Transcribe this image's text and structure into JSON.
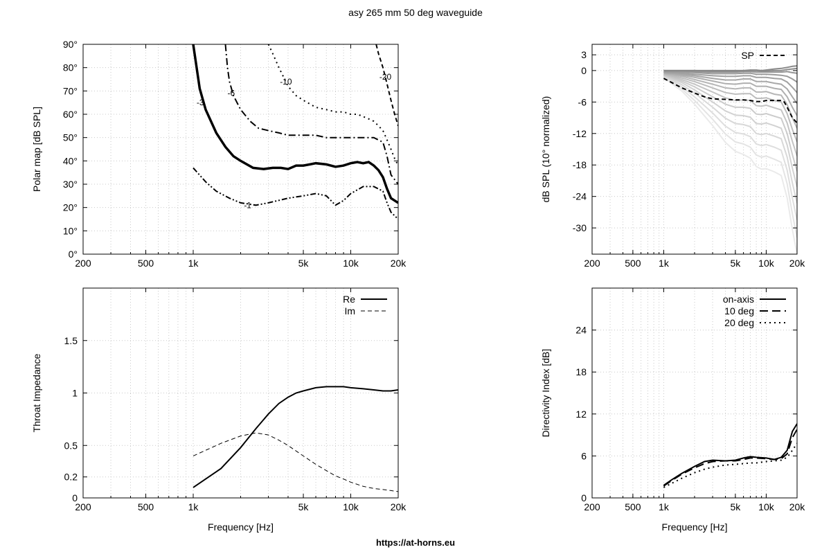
{
  "title": "asy 265 mm 50 deg waveguide",
  "footer": "https://at-horns.eu",
  "chart_data": [
    {
      "type": "line",
      "id": "polar",
      "xscale": "log",
      "xlim": [
        200,
        20000
      ],
      "ylim": [
        0,
        90
      ],
      "xticks": [
        200,
        500,
        1000,
        5000,
        10000,
        20000
      ],
      "xticklabels": [
        "200",
        "500",
        "1k",
        "5k",
        "10k",
        "20k"
      ],
      "yticks": [
        0,
        10,
        20,
        30,
        40,
        50,
        60,
        70,
        80,
        90
      ],
      "yticklabels": [
        "0°",
        "10°",
        "20°",
        "30°",
        "40°",
        "50°",
        "60°",
        "70°",
        "80°",
        "90°"
      ],
      "xlabel": "",
      "ylabel": "Polar map [dB SPL]",
      "grid": true,
      "series": [
        {
          "name": "-1",
          "style": "dashdotdot",
          "width": 2,
          "color": "#000000",
          "x": [
            1000,
            1200,
            1400,
            1700,
            2000,
            2500,
            3000,
            4000,
            5000,
            6000,
            7000,
            8000,
            9000,
            10000,
            12000,
            14000,
            16000,
            17000,
            18000,
            20000
          ],
          "y": [
            37,
            31,
            27,
            24,
            22,
            21,
            22,
            24,
            25,
            26,
            25,
            21,
            23,
            26,
            29,
            29,
            27,
            22,
            18,
            15
          ]
        },
        {
          "name": "-3",
          "style": "solid",
          "width": 3.5,
          "color": "#000000",
          "x": [
            1000,
            1100,
            1200,
            1400,
            1600,
            1800,
            2000,
            2400,
            2800,
            3200,
            3600,
            4000,
            4500,
            5000,
            5500,
            6000,
            7000,
            8000,
            9000,
            10000,
            11000,
            12000,
            13000,
            14000,
            15000,
            16000,
            17000,
            18000,
            20000
          ],
          "y": [
            90,
            71,
            62,
            52,
            46,
            42,
            40,
            37,
            36.5,
            37,
            37,
            36.5,
            38,
            38,
            38.5,
            39,
            38.5,
            37.5,
            38,
            39,
            39.5,
            39,
            39.5,
            38,
            36,
            33,
            28,
            24,
            22
          ]
        },
        {
          "name": "-6",
          "style": "dashdot",
          "width": 2,
          "color": "#000000",
          "x": [
            1600,
            1650,
            1700,
            1800,
            2000,
            2300,
            2600,
            3000,
            3500,
            4000,
            5000,
            6000,
            7000,
            8000,
            10000,
            12000,
            14000,
            16000,
            17000,
            18000,
            20000
          ],
          "y": [
            90,
            80,
            74,
            68,
            62,
            57,
            54,
            53,
            52,
            51,
            51,
            51,
            50,
            50,
            50,
            50,
            50,
            48,
            42,
            34,
            30
          ]
        },
        {
          "name": "-10",
          "style": "dotted",
          "width": 2,
          "color": "#000000",
          "x": [
            3000,
            3200,
            3500,
            4000,
            4500,
            5000,
            6000,
            7000,
            8000,
            9000,
            10000,
            11000,
            12000,
            13000,
            14000,
            15000,
            16000,
            17000,
            18000,
            19000,
            20000
          ],
          "y": [
            90,
            86,
            80,
            72,
            68,
            66,
            63,
            62,
            61,
            61,
            60,
            60,
            59,
            58,
            57,
            55,
            53,
            49,
            45,
            41,
            38
          ]
        },
        {
          "name": "-20",
          "style": "dashed",
          "width": 2,
          "color": "#000000",
          "x": [
            14500,
            15000,
            16000,
            17000,
            18000,
            19000,
            20000
          ],
          "y": [
            90,
            86,
            80,
            73,
            66,
            60,
            55
          ]
        }
      ],
      "annotations": [
        {
          "text": "-1",
          "x": 2100,
          "y": 21
        },
        {
          "text": "-3",
          "x": 1050,
          "y": 65
        },
        {
          "text": "-6",
          "x": 1650,
          "y": 69
        },
        {
          "text": "-10",
          "x": 3550,
          "y": 74
        },
        {
          "text": "-20",
          "x": 15200,
          "y": 76
        }
      ]
    },
    {
      "type": "line",
      "id": "normalized",
      "xscale": "log",
      "xlim": [
        200,
        20000
      ],
      "ylim": [
        -35,
        5
      ],
      "xticks": [
        200,
        500,
        1000,
        5000,
        10000,
        20000
      ],
      "xticklabels": [
        "200",
        "500",
        "1k",
        "5k",
        "10k",
        "20k"
      ],
      "yticks": [
        3,
        0,
        -6,
        -12,
        -18,
        -24,
        -30
      ],
      "yticklabels": [
        "3",
        "0",
        "-6",
        "-12",
        "-18",
        "-24",
        "-30"
      ],
      "xlabel": "",
      "ylabel": "dB SPL (10° normalized)",
      "grid": true,
      "legend": "top-right",
      "x": [
        1000,
        1500,
        2000,
        3000,
        4000,
        5000,
        6000,
        7000,
        8000,
        9000,
        10000,
        12000,
        14000,
        16000,
        18000,
        20000
      ],
      "angle_curves": [
        {
          "gray": "#888888",
          "y": [
            0,
            0,
            0,
            0,
            0,
            0,
            0,
            0.1,
            0.1,
            0,
            0.1,
            0.3,
            0.4,
            0.6,
            0.8,
            0.9
          ]
        },
        {
          "gray": "#8e8e8e",
          "y": [
            0,
            0,
            0,
            -0.1,
            -0.1,
            -0.1,
            -0.1,
            0,
            0,
            -0.1,
            -0.1,
            0,
            0,
            0.2,
            0.3,
            0.4
          ]
        },
        {
          "gray": "#949494",
          "y": [
            -0.1,
            -0.1,
            -0.2,
            -0.3,
            -0.3,
            -0.3,
            -0.2,
            -0.2,
            -0.3,
            -0.3,
            -0.3,
            -0.3,
            -0.3,
            -0.2,
            -0.4,
            -0.5
          ]
        },
        {
          "gray": "#9b9b9b",
          "y": [
            -0.2,
            -0.3,
            -0.4,
            -0.6,
            -0.6,
            -0.6,
            -0.5,
            -0.5,
            -0.7,
            -0.7,
            -0.7,
            -0.8,
            -0.9,
            -1.1,
            -1.6,
            -2.2
          ]
        },
        {
          "gray": "#a1a1a1",
          "y": [
            -0.3,
            -0.5,
            -0.7,
            -1.0,
            -1.1,
            -1.1,
            -1.0,
            -1.0,
            -1.3,
            -1.3,
            -1.3,
            -1.5,
            -1.6,
            -2.2,
            -3.2,
            -4.2
          ]
        },
        {
          "gray": "#a8a8a8",
          "y": [
            -0.4,
            -0.7,
            -1.0,
            -1.5,
            -1.8,
            -1.8,
            -1.6,
            -1.6,
            -2.1,
            -2.1,
            -2.1,
            -2.4,
            -2.6,
            -3.5,
            -5.0,
            -6.3
          ]
        },
        {
          "gray": "#afafaf",
          "y": [
            -0.5,
            -0.9,
            -1.3,
            -2.0,
            -2.5,
            -2.6,
            -2.4,
            -2.4,
            -3.0,
            -3.0,
            -3.0,
            -3.4,
            -3.6,
            -5.0,
            -7.0,
            -8.6
          ]
        },
        {
          "gray": "#b6b6b6",
          "y": [
            -0.6,
            -1.1,
            -1.7,
            -2.6,
            -3.3,
            -3.5,
            -3.3,
            -3.3,
            -4.1,
            -4.1,
            -4.0,
            -4.5,
            -4.7,
            -6.5,
            -9.0,
            -11.0
          ]
        },
        {
          "gray": "#bdbdbd",
          "y": [
            -0.7,
            -1.4,
            -2.1,
            -3.3,
            -4.2,
            -4.5,
            -4.4,
            -4.4,
            -5.3,
            -5.3,
            -5.2,
            -5.7,
            -6.0,
            -8.2,
            -11.2,
            -13.6
          ]
        },
        {
          "gray": "#c4c4c4",
          "y": [
            -0.8,
            -1.7,
            -2.6,
            -4.1,
            -5.2,
            -5.7,
            -5.6,
            -5.7,
            -6.7,
            -6.8,
            -6.6,
            -7.1,
            -7.5,
            -10.0,
            -13.5,
            -16.3
          ]
        },
        {
          "gray": "#cbcbcb",
          "y": [
            -0.9,
            -2.0,
            -3.1,
            -5.0,
            -6.4,
            -7.0,
            -7.0,
            -7.2,
            -8.3,
            -8.4,
            -8.2,
            -8.7,
            -9.1,
            -12.0,
            -16.0,
            -19.2
          ]
        },
        {
          "gray": "#d2d2d2",
          "y": [
            -1.0,
            -2.3,
            -3.7,
            -6.0,
            -7.7,
            -8.5,
            -8.6,
            -8.9,
            -10.1,
            -10.2,
            -10.0,
            -10.5,
            -11.0,
            -14.2,
            -18.6,
            -22.2
          ]
        },
        {
          "gray": "#d8d8d8",
          "y": [
            -1.1,
            -2.7,
            -4.3,
            -7.0,
            -9.1,
            -10.1,
            -10.3,
            -10.7,
            -12.0,
            -12.2,
            -12.0,
            -12.5,
            -13.0,
            -16.5,
            -21.4,
            -25.3
          ]
        },
        {
          "gray": "#dedede",
          "y": [
            -1.2,
            -3.1,
            -5.0,
            -8.1,
            -10.6,
            -11.8,
            -12.1,
            -12.6,
            -14.0,
            -14.3,
            -14.1,
            -14.6,
            -15.2,
            -19.0,
            -24.3,
            -28.5
          ]
        },
        {
          "gray": "#e4e4e4",
          "y": [
            -1.3,
            -3.5,
            -5.7,
            -9.3,
            -12.1,
            -13.6,
            -14.0,
            -14.6,
            -16.1,
            -16.5,
            -16.3,
            -16.9,
            -17.5,
            -21.6,
            -27.3,
            -31.8
          ]
        },
        {
          "gray": "#eaeaea",
          "y": [
            -1.4,
            -3.9,
            -6.4,
            -10.5,
            -13.7,
            -15.4,
            -16.0,
            -16.7,
            -18.3,
            -18.8,
            -18.7,
            -19.3,
            -20.0,
            -24.3,
            -30.3,
            -35.0
          ]
        }
      ],
      "series": [
        {
          "name": "SP",
          "style": "dashed",
          "width": 2,
          "color": "#000000",
          "x": [
            1000,
            1200,
            1500,
            2000,
            2500,
            3000,
            4000,
            5000,
            6000,
            7000,
            8000,
            9000,
            10000,
            12000,
            14000,
            15000,
            16000,
            18000,
            20000
          ],
          "y": [
            -1.5,
            -2.3,
            -3.3,
            -4.3,
            -5.0,
            -5.4,
            -5.5,
            -5.6,
            -5.6,
            -5.7,
            -5.9,
            -5.9,
            -5.7,
            -5.7,
            -5.7,
            -6.0,
            -7.0,
            -9.0,
            -10.0
          ]
        }
      ]
    },
    {
      "type": "line",
      "id": "impedance",
      "xscale": "log",
      "xlim": [
        200,
        20000
      ],
      "ylim": [
        0,
        2
      ],
      "xticks": [
        200,
        500,
        1000,
        5000,
        10000,
        20000
      ],
      "xticklabels": [
        "200",
        "500",
        "1k",
        "5k",
        "10k",
        "20k"
      ],
      "yticks": [
        0,
        0.2,
        0.5,
        1,
        1.5
      ],
      "yticklabels": [
        "0",
        "0.2",
        "0.5",
        "1",
        "1.5"
      ],
      "xlabel": "Frequency [Hz]",
      "ylabel": "Throat Impedance",
      "grid": true,
      "legend": "top-right",
      "series": [
        {
          "name": "Re",
          "style": "solid",
          "width": 2,
          "color": "#000000",
          "x": [
            1000,
            1500,
            2000,
            2500,
            3000,
            3500,
            4000,
            4500,
            5000,
            6000,
            7000,
            8000,
            9000,
            10000,
            12000,
            14000,
            16000,
            18000,
            20000
          ],
          "y": [
            0.1,
            0.28,
            0.48,
            0.66,
            0.8,
            0.9,
            0.96,
            1.0,
            1.02,
            1.05,
            1.06,
            1.06,
            1.06,
            1.05,
            1.04,
            1.03,
            1.02,
            1.02,
            1.03
          ]
        },
        {
          "name": "Im",
          "style": "dashed",
          "width": 1,
          "color": "#000000",
          "x": [
            1000,
            1500,
            2000,
            2500,
            3000,
            3500,
            4000,
            5000,
            6000,
            7000,
            8000,
            9000,
            10000,
            12000,
            14000,
            16000,
            18000,
            20000
          ],
          "y": [
            0.4,
            0.52,
            0.59,
            0.62,
            0.6,
            0.55,
            0.5,
            0.4,
            0.32,
            0.26,
            0.21,
            0.18,
            0.15,
            0.11,
            0.09,
            0.08,
            0.07,
            0.06
          ]
        }
      ]
    },
    {
      "type": "line",
      "id": "directivity",
      "xscale": "log",
      "xlim": [
        200,
        20000
      ],
      "ylim": [
        0,
        30
      ],
      "xticks": [
        200,
        500,
        1000,
        5000,
        10000,
        20000
      ],
      "xticklabels": [
        "200",
        "500",
        "1k",
        "5k",
        "10k",
        "20k"
      ],
      "yticks": [
        0,
        6,
        12,
        18,
        24
      ],
      "yticklabels": [
        "0",
        "6",
        "12",
        "18",
        "24"
      ],
      "xlabel": "Frequency [Hz]",
      "ylabel": "Directivity Index [dB]",
      "grid": true,
      "legend": "top-right",
      "series": [
        {
          "name": "on-axis",
          "style": "solid",
          "width": 2,
          "color": "#000000",
          "x": [
            1000,
            1200,
            1500,
            2000,
            2500,
            3000,
            4000,
            5000,
            6000,
            7000,
            8000,
            10000,
            12000,
            14000,
            16000,
            18000,
            20000
          ],
          "y": [
            1.8,
            2.6,
            3.5,
            4.5,
            5.2,
            5.4,
            5.3,
            5.4,
            5.7,
            5.9,
            5.8,
            5.7,
            5.5,
            5.8,
            6.8,
            9.5,
            10.6
          ]
        },
        {
          "name": "10 deg",
          "style": "longdash",
          "width": 2,
          "color": "#000000",
          "x": [
            1000,
            1200,
            1500,
            2000,
            2500,
            3000,
            4000,
            5000,
            6000,
            7000,
            8000,
            10000,
            12000,
            14000,
            16000,
            18000,
            20000
          ],
          "y": [
            1.7,
            2.5,
            3.4,
            4.3,
            4.9,
            5.2,
            5.3,
            5.3,
            5.5,
            5.7,
            5.7,
            5.6,
            5.5,
            5.6,
            6.3,
            8.6,
            9.8
          ]
        },
        {
          "name": "20 deg",
          "style": "dotted",
          "width": 2,
          "color": "#000000",
          "x": [
            1000,
            1200,
            1500,
            2000,
            2500,
            3000,
            4000,
            5000,
            6000,
            7000,
            8000,
            10000,
            12000,
            14000,
            16000,
            18000,
            20000
          ],
          "y": [
            1.5,
            2.1,
            2.8,
            3.6,
            4.1,
            4.4,
            4.7,
            4.8,
            4.9,
            5.0,
            5.0,
            5.2,
            5.3,
            5.4,
            5.8,
            6.8,
            7.8
          ]
        }
      ]
    }
  ]
}
